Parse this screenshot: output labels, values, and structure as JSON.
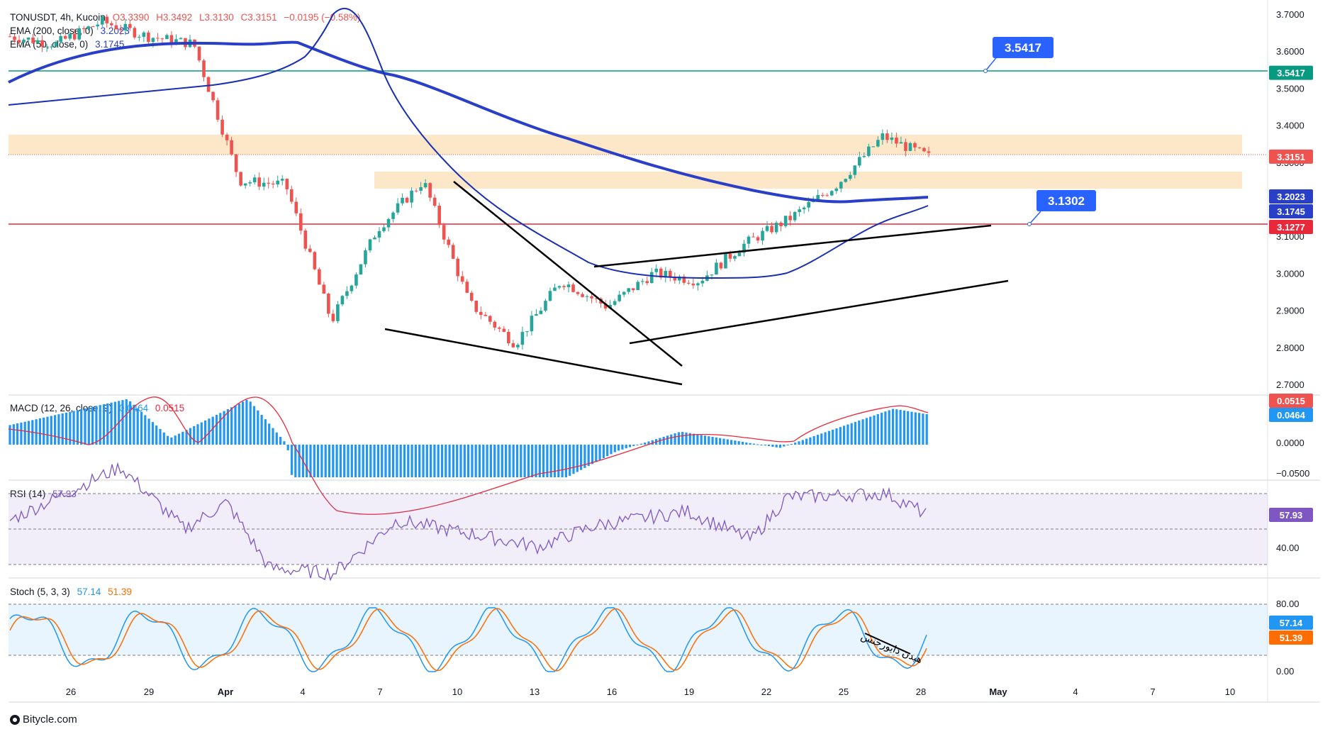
{
  "header": {
    "symbol": "TONUSDT, 4h, Kucoin",
    "open": "O3.3390",
    "high": "H3.3492",
    "low": "L3.3130",
    "close": "C3.3151",
    "change": "−0.0195 (−0.58%)"
  },
  "legends": {
    "ema200_label": "EMA (200, close, 0)",
    "ema200_value": "3.2023",
    "ema50_label": "EMA (50, close, 0)",
    "ema50_value": "3.1745",
    "macd_label": "MACD (12, 26, close, 9)",
    "macd_value1": "0.0464",
    "macd_value2": "0.0515",
    "rsi_label": "RSI (14)",
    "rsi_value": "57.93",
    "stoch_label": "Stoch (5, 3, 3)",
    "stoch_k": "57.14",
    "stoch_d": "51.39"
  },
  "callouts": {
    "upper": "3.5417",
    "lower": "3.1302"
  },
  "annotation": "هیدن دایورجنس",
  "footer": "Bitycle.com",
  "colors": {
    "up": "#26a69a",
    "down": "#ef5350",
    "ema200": "#2a3fc8",
    "ema50": "#1a2fb4",
    "zone": "#fde3c0",
    "hline_green": "#089981",
    "hline_red": "#e8293b",
    "macd_hist": "#2196f3",
    "rsi_line": "#7e57c2",
    "stoch_k": "#2196f3",
    "stoch_d": "#ff6d00",
    "callout": "#2962ff"
  },
  "chart_data": [
    {
      "type": "candlestick",
      "title": "TONUSDT, 4h, Kucoin",
      "x_tick_labels": [
        "26",
        "29",
        "Apr",
        "4",
        "7",
        "10",
        "13",
        "16",
        "19",
        "22",
        "25",
        "28",
        "May",
        "4",
        "7",
        "10"
      ],
      "y_tick_labels": [
        "3.7000",
        "3.6000",
        "3.5000",
        "3.4000",
        "3.3000",
        "3.2000",
        "3.1000",
        "3.0000",
        "2.9000",
        "2.8000",
        "2.7000"
      ],
      "ylim": [
        2.66,
        3.71
      ],
      "approx_close_path": [
        {
          "x": "Mar 24",
          "y": 3.64
        },
        {
          "x": "Mar 26",
          "y": 3.62
        },
        {
          "x": "Mar 29",
          "y": 3.68
        },
        {
          "x": "Apr 1",
          "y": 3.64
        },
        {
          "x": "Apr 3",
          "y": 3.62
        },
        {
          "x": "Apr 5",
          "y": 3.25
        },
        {
          "x": "Apr 6",
          "y": 3.24
        },
        {
          "x": "Apr 7",
          "y": 2.87
        },
        {
          "x": "Apr 9",
          "y": 3.12
        },
        {
          "x": "Apr 10",
          "y": 3.25
        },
        {
          "x": "Apr 12",
          "y": 2.92
        },
        {
          "x": "Apr 14",
          "y": 2.81
        },
        {
          "x": "Apr 15",
          "y": 2.98
        },
        {
          "x": "Apr 17",
          "y": 2.91
        },
        {
          "x": "Apr 19",
          "y": 3.0
        },
        {
          "x": "Apr 21",
          "y": 2.98
        },
        {
          "x": "Apr 22",
          "y": 3.08
        },
        {
          "x": "Apr 24",
          "y": 3.15
        },
        {
          "x": "Apr 26",
          "y": 3.24
        },
        {
          "x": "Apr 27",
          "y": 3.37
        },
        {
          "x": "Apr 28",
          "y": 3.3151
        }
      ],
      "last_close": 3.3151,
      "levels": {
        "horizontal_green": 3.5417,
        "horizontal_red": 3.1277,
        "callout_upper": 3.5417,
        "callout_lower": 3.1302
      },
      "supply_zones": [
        [
          3.31,
          3.37
        ],
        [
          3.22,
          3.265
        ]
      ],
      "ema200_last": 3.2023,
      "ema50_last": 3.1745,
      "price_labels": [
        "3.5417",
        "3.3151",
        "3.2023",
        "3.1745",
        "3.1277"
      ]
    },
    {
      "type": "bar",
      "title": "MACD (12, 26, close, 9)",
      "y_tick_labels": [
        "0.0000",
        "−0.0500"
      ],
      "ylim": [
        -0.06,
        0.07
      ],
      "last_values": {
        "macd": 0.0464,
        "signal": 0.0515
      },
      "approx_histogram": [
        {
          "x": "Mar 24",
          "y": 0.03
        },
        {
          "x": "Mar 28",
          "y": 0.07
        },
        {
          "x": "Mar 31",
          "y": 0.01
        },
        {
          "x": "Apr 2",
          "y": 0.07
        },
        {
          "x": "Apr 4",
          "y": 0.0
        },
        {
          "x": "Apr 5",
          "y": -0.05
        },
        {
          "x": "Apr 14",
          "y": -0.05
        },
        {
          "x": "Apr 17",
          "y": -0.01
        },
        {
          "x": "Apr 19",
          "y": 0.02
        },
        {
          "x": "Apr 22",
          "y": -0.005
        },
        {
          "x": "Apr 25",
          "y": 0.055
        },
        {
          "x": "Apr 28",
          "y": 0.0464
        }
      ]
    },
    {
      "type": "line",
      "title": "RSI (14)",
      "y_tick_labels": [
        "40.00"
      ],
      "ylim": [
        25,
        90
      ],
      "bands": [
        30,
        50,
        70
      ],
      "last_value": 57.93,
      "approx_values": [
        {
          "x": "Mar 24",
          "y": 55
        },
        {
          "x": "Mar 28",
          "y": 85
        },
        {
          "x": "Mar 31",
          "y": 50
        },
        {
          "x": "Apr 2",
          "y": 65
        },
        {
          "x": "Apr 4",
          "y": 28
        },
        {
          "x": "Apr 7",
          "y": 25
        },
        {
          "x": "Apr 10",
          "y": 55
        },
        {
          "x": "Apr 14",
          "y": 40
        },
        {
          "x": "Apr 16",
          "y": 52
        },
        {
          "x": "Apr 19",
          "y": 60
        },
        {
          "x": "Apr 21",
          "y": 44
        },
        {
          "x": "Apr 23",
          "y": 68
        },
        {
          "x": "Apr 27",
          "y": 70
        },
        {
          "x": "Apr 28",
          "y": 57.93
        }
      ]
    },
    {
      "type": "line",
      "title": "Stoch (5, 3, 3)",
      "y_tick_labels": [
        "80.00",
        "0.00"
      ],
      "ylim": [
        0,
        100
      ],
      "bands": [
        20,
        80
      ],
      "series": [
        {
          "name": "K",
          "last": 57.14
        },
        {
          "name": "D",
          "last": 51.39
        }
      ]
    }
  ]
}
